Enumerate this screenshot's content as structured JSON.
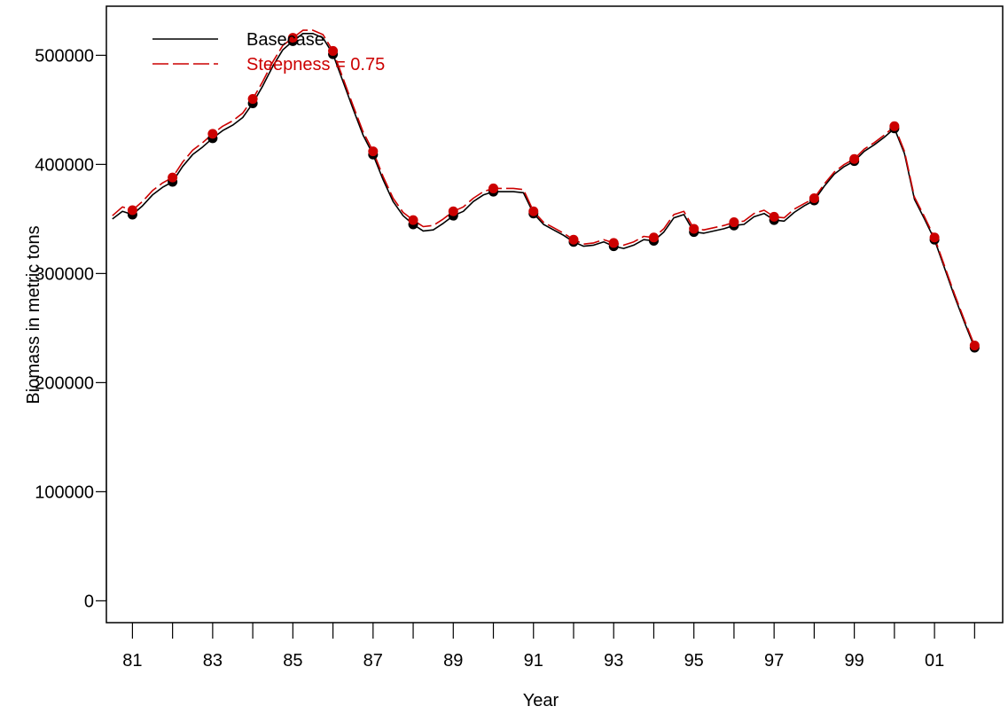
{
  "chart_data": {
    "type": "line",
    "xlabel": "Year",
    "ylabel": "Biomass in metric tons",
    "xlim": [
      1980.35,
      2002.7
    ],
    "ylim": [
      -20000,
      545000
    ],
    "x_ticks": [
      1981,
      1982,
      1983,
      1984,
      1985,
      1986,
      1987,
      1988,
      1989,
      1990,
      1991,
      1992,
      1993,
      1994,
      1995,
      1996,
      1997,
      1998,
      1999,
      2000,
      2001,
      2002
    ],
    "x_tick_labels": [
      "81",
      "83",
      "85",
      "87",
      "89",
      "91",
      "93",
      "95",
      "97",
      "99",
      "01"
    ],
    "x_tick_label_values": [
      1981,
      1983,
      1985,
      1987,
      1989,
      1991,
      1993,
      1995,
      1997,
      1999,
      2001
    ],
    "y_ticks": [
      0,
      100000,
      200000,
      300000,
      400000,
      500000
    ],
    "y_tick_labels": [
      "0",
      "100000",
      "200000",
      "300000",
      "400000",
      "500000"
    ],
    "legend_position": "top-left",
    "series": [
      {
        "name": "Basecase",
        "color": "#000000",
        "line_style": "solid",
        "line": [
          [
            1980.5,
            350000
          ],
          [
            1980.75,
            357000
          ],
          [
            1981,
            354000
          ],
          [
            1981.25,
            362000
          ],
          [
            1981.5,
            372000
          ],
          [
            1981.75,
            379000
          ],
          [
            1982,
            384000
          ],
          [
            1982.25,
            398000
          ],
          [
            1982.5,
            409000
          ],
          [
            1982.75,
            416000
          ],
          [
            1983,
            424000
          ],
          [
            1983.25,
            431000
          ],
          [
            1983.5,
            436000
          ],
          [
            1983.75,
            443000
          ],
          [
            1984,
            456000
          ],
          [
            1984.25,
            472000
          ],
          [
            1984.5,
            490000
          ],
          [
            1984.75,
            505000
          ],
          [
            1985,
            513000
          ],
          [
            1985.25,
            520000
          ],
          [
            1985.5,
            520000
          ],
          [
            1985.75,
            516000
          ],
          [
            1986,
            501000
          ],
          [
            1986.25,
            476000
          ],
          [
            1986.5,
            451000
          ],
          [
            1986.75,
            427000
          ],
          [
            1987,
            409000
          ],
          [
            1987.25,
            386000
          ],
          [
            1987.5,
            366000
          ],
          [
            1987.75,
            353000
          ],
          [
            1988,
            345000
          ],
          [
            1988.25,
            339000
          ],
          [
            1988.5,
            340000
          ],
          [
            1988.75,
            346000
          ],
          [
            1989,
            353000
          ],
          [
            1989.25,
            357000
          ],
          [
            1989.5,
            366000
          ],
          [
            1989.75,
            372000
          ],
          [
            1990,
            375000
          ],
          [
            1990.25,
            375000
          ],
          [
            1990.5,
            375000
          ],
          [
            1990.75,
            374000
          ],
          [
            1991,
            355000
          ],
          [
            1991.25,
            345000
          ],
          [
            1991.5,
            340000
          ],
          [
            1991.75,
            335000
          ],
          [
            1992,
            329000
          ],
          [
            1992.25,
            325000
          ],
          [
            1992.5,
            326000
          ],
          [
            1992.75,
            329000
          ],
          [
            1993,
            325000
          ],
          [
            1993.25,
            323000
          ],
          [
            1993.5,
            326000
          ],
          [
            1993.75,
            331000
          ],
          [
            1994,
            330000
          ],
          [
            1994.25,
            338000
          ],
          [
            1994.5,
            351000
          ],
          [
            1994.75,
            354000
          ],
          [
            1995,
            338000
          ],
          [
            1995.25,
            337000
          ],
          [
            1995.5,
            339000
          ],
          [
            1995.75,
            341000
          ],
          [
            1996,
            344000
          ],
          [
            1996.25,
            345000
          ],
          [
            1996.5,
            352000
          ],
          [
            1996.75,
            355000
          ],
          [
            1997,
            349000
          ],
          [
            1997.25,
            348000
          ],
          [
            1997.5,
            356000
          ],
          [
            1997.75,
            362000
          ],
          [
            1998,
            367000
          ],
          [
            1998.25,
            380000
          ],
          [
            1998.5,
            391000
          ],
          [
            1998.75,
            398000
          ],
          [
            1999,
            403000
          ],
          [
            1999.25,
            412000
          ],
          [
            1999.5,
            418000
          ],
          [
            1999.75,
            425000
          ],
          [
            2000,
            433000
          ],
          [
            2000.25,
            410000
          ],
          [
            2000.5,
            368000
          ],
          [
            2000.75,
            350000
          ],
          [
            2001,
            331000
          ],
          [
            2001.25,
            305000
          ],
          [
            2001.5,
            279000
          ],
          [
            2001.75,
            255000
          ],
          [
            2002,
            232000
          ]
        ],
        "points_x": [
          1981,
          1982,
          1983,
          1984,
          1985,
          1986,
          1987,
          1988,
          1989,
          1990,
          1991,
          1992,
          1993,
          1994,
          1995,
          1996,
          1997,
          1998,
          1999,
          2000,
          2001,
          2002
        ],
        "points_y": [
          354000,
          384000,
          424000,
          456000,
          513000,
          501000,
          409000,
          345000,
          353000,
          375000,
          355000,
          329000,
          325000,
          330000,
          338000,
          344000,
          349000,
          367000,
          403000,
          433000,
          331000,
          232000
        ]
      },
      {
        "name": "Steepness = 0.75",
        "color": "#cc0000",
        "line_style": "dashed",
        "line": [
          [
            1980.5,
            353000
          ],
          [
            1980.75,
            361000
          ],
          [
            1981,
            358000
          ],
          [
            1981.25,
            366000
          ],
          [
            1981.5,
            376000
          ],
          [
            1981.75,
            383000
          ],
          [
            1982,
            388000
          ],
          [
            1982.25,
            402000
          ],
          [
            1982.5,
            413000
          ],
          [
            1982.75,
            420000
          ],
          [
            1983,
            428000
          ],
          [
            1983.25,
            435000
          ],
          [
            1983.5,
            440000
          ],
          [
            1983.75,
            447000
          ],
          [
            1984,
            460000
          ],
          [
            1984.25,
            476000
          ],
          [
            1984.5,
            494000
          ],
          [
            1984.75,
            509000
          ],
          [
            1985,
            516000
          ],
          [
            1985.25,
            523000
          ],
          [
            1985.5,
            523000
          ],
          [
            1985.75,
            519000
          ],
          [
            1986,
            504000
          ],
          [
            1986.25,
            479000
          ],
          [
            1986.5,
            454000
          ],
          [
            1986.75,
            430000
          ],
          [
            1987,
            412000
          ],
          [
            1987.25,
            389000
          ],
          [
            1987.5,
            369000
          ],
          [
            1987.75,
            356000
          ],
          [
            1988,
            349000
          ],
          [
            1988.25,
            343000
          ],
          [
            1988.5,
            344000
          ],
          [
            1988.75,
            350000
          ],
          [
            1989,
            357000
          ],
          [
            1989.25,
            361000
          ],
          [
            1989.5,
            369000
          ],
          [
            1989.75,
            375000
          ],
          [
            1990,
            378000
          ],
          [
            1990.25,
            378000
          ],
          [
            1990.5,
            378000
          ],
          [
            1990.75,
            377000
          ],
          [
            1991,
            357000
          ],
          [
            1991.25,
            347000
          ],
          [
            1991.5,
            342000
          ],
          [
            1991.75,
            337000
          ],
          [
            1992,
            331000
          ],
          [
            1992.25,
            327000
          ],
          [
            1992.5,
            328000
          ],
          [
            1992.75,
            331000
          ],
          [
            1993,
            328000
          ],
          [
            1993.25,
            326000
          ],
          [
            1993.5,
            329000
          ],
          [
            1993.75,
            334000
          ],
          [
            1994,
            333000
          ],
          [
            1994.25,
            341000
          ],
          [
            1994.5,
            354000
          ],
          [
            1994.75,
            357000
          ],
          [
            1995,
            341000
          ],
          [
            1995.25,
            340000
          ],
          [
            1995.5,
            342000
          ],
          [
            1995.75,
            344000
          ],
          [
            1996,
            347000
          ],
          [
            1996.25,
            348000
          ],
          [
            1996.5,
            355000
          ],
          [
            1996.75,
            358000
          ],
          [
            1997,
            352000
          ],
          [
            1997.25,
            351000
          ],
          [
            1997.5,
            359000
          ],
          [
            1997.75,
            364000
          ],
          [
            1998,
            369000
          ],
          [
            1998.25,
            382000
          ],
          [
            1998.5,
            393000
          ],
          [
            1998.75,
            400000
          ],
          [
            1999,
            405000
          ],
          [
            1999.25,
            414000
          ],
          [
            1999.5,
            420000
          ],
          [
            1999.75,
            427000
          ],
          [
            2000,
            435000
          ],
          [
            2000.25,
            412000
          ],
          [
            2000.5,
            370000
          ],
          [
            2000.75,
            352000
          ],
          [
            2001,
            333000
          ],
          [
            2001.25,
            307000
          ],
          [
            2001.5,
            281000
          ],
          [
            2001.75,
            257000
          ],
          [
            2002,
            234000
          ]
        ],
        "points_x": [
          1981,
          1982,
          1983,
          1984,
          1985,
          1986,
          1987,
          1988,
          1989,
          1990,
          1991,
          1992,
          1993,
          1994,
          1995,
          1996,
          1997,
          1998,
          1999,
          2000,
          2001,
          2002
        ],
        "points_y": [
          358000,
          388000,
          428000,
          460000,
          516000,
          504000,
          412000,
          349000,
          357000,
          378000,
          357000,
          331000,
          328000,
          333000,
          341000,
          347000,
          352000,
          369000,
          405000,
          435000,
          333000,
          234000
        ]
      }
    ]
  }
}
